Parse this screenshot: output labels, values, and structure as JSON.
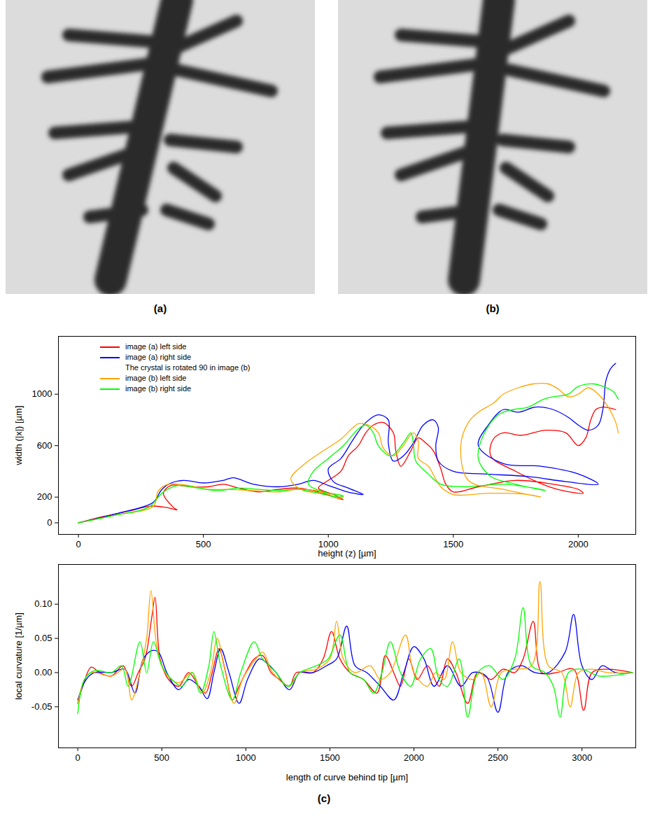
{
  "images": [
    {
      "label": "(a)"
    },
    {
      "label": "(b)"
    }
  ],
  "figure_label": "(c)",
  "chart_data": [
    {
      "type": "line",
      "x_label": "height (z) [µm]",
      "y_label": "width (|x|) [µm]",
      "xlim": [
        -80,
        2230
      ],
      "xticks": [
        0,
        500,
        1000,
        1500,
        2000
      ],
      "ylim": [
        -90,
        1450
      ],
      "yticks": [
        0,
        200,
        600,
        1000
      ],
      "grid": false,
      "legend": "top-left",
      "annotations": [
        {
          "text": "The crystal is rotated 90 in image (b)",
          "after": "image (a) right side"
        }
      ],
      "series": [
        {
          "name": "image (a) left side",
          "color": "#ff0000",
          "x": [
            0,
            100,
            200,
            290,
            350,
            395,
            380,
            340,
            370,
            450,
            520,
            580,
            640,
            720,
            800,
            880,
            960,
            1040,
            1060,
            1020,
            960,
            1000,
            1050,
            1080,
            1120,
            1150,
            1180,
            1220,
            1260,
            1270,
            1290,
            1330,
            1360,
            1390,
            1420,
            1450,
            1470,
            1500,
            1600,
            1750,
            1900,
            2000,
            2020,
            1900,
            1750,
            1650,
            1660,
            1700,
            1770,
            1870,
            1950,
            2000,
            2030,
            2050,
            2070,
            2100,
            2150
          ],
          "values": [
            0,
            50,
            90,
            130,
            120,
            100,
            120,
            230,
            290,
            280,
            280,
            300,
            270,
            240,
            260,
            270,
            240,
            190,
            180,
            220,
            270,
            330,
            400,
            520,
            600,
            700,
            760,
            780,
            700,
            560,
            440,
            560,
            660,
            620,
            560,
            420,
            300,
            240,
            280,
            330,
            300,
            260,
            230,
            270,
            400,
            520,
            650,
            700,
            680,
            720,
            700,
            600,
            660,
            800,
            880,
            900,
            880
          ]
        },
        {
          "name": "image (a) right side",
          "color": "#0000ff",
          "x": [
            0,
            150,
            300,
            330,
            360,
            420,
            500,
            580,
            620,
            700,
            800,
            880,
            940,
            1000,
            1060,
            1100,
            1140,
            1080,
            1020,
            1000,
            1050,
            1100,
            1150,
            1200,
            1240,
            1240,
            1260,
            1300,
            1340,
            1380,
            1420,
            1440,
            1430,
            1440,
            1500,
            1620,
            1800,
            1950,
            2080,
            2000,
            1850,
            1700,
            1600,
            1640,
            1700,
            1760,
            1830,
            1900,
            1960,
            2000,
            2040,
            2080,
            2100,
            2110,
            2130,
            2150
          ],
          "values": [
            0,
            70,
            160,
            250,
            300,
            330,
            310,
            330,
            350,
            300,
            280,
            300,
            330,
            290,
            250,
            230,
            220,
            270,
            320,
            420,
            500,
            650,
            780,
            840,
            800,
            620,
            480,
            520,
            620,
            760,
            800,
            740,
            600,
            480,
            400,
            380,
            360,
            320,
            300,
            380,
            440,
            460,
            600,
            760,
            880,
            860,
            900,
            880,
            820,
            760,
            720,
            760,
            900,
            1100,
            1200,
            1240
          ]
        },
        {
          "name": "image (b) left side",
          "color": "#ffa500",
          "x": [
            0,
            150,
            300,
            320,
            360,
            440,
            520,
            600,
            700,
            800,
            880,
            980,
            1040,
            1060,
            1000,
            900,
            850,
            900,
            980,
            1050,
            1120,
            1160,
            1200,
            1220,
            1260,
            1300,
            1340,
            1360,
            1360,
            1400,
            1450,
            1500,
            1650,
            1800,
            1850,
            1700,
            1560,
            1530,
            1560,
            1600,
            1660,
            1700,
            1760,
            1820,
            1880,
            1920,
            1960,
            2000,
            2040,
            2080,
            2120,
            2150,
            2160
          ],
          "values": [
            0,
            60,
            130,
            250,
            300,
            290,
            260,
            260,
            250,
            240,
            260,
            240,
            190,
            200,
            230,
            250,
            340,
            450,
            560,
            650,
            770,
            760,
            700,
            580,
            520,
            600,
            700,
            630,
            500,
            440,
            280,
            220,
            230,
            220,
            200,
            260,
            330,
            600,
            780,
            860,
            930,
            1000,
            1050,
            1080,
            1080,
            1040,
            980,
            1000,
            1050,
            1000,
            900,
            780,
            700
          ]
        },
        {
          "name": "image (b) right side",
          "color": "#00ff00",
          "x": [
            0,
            150,
            280,
            340,
            400,
            480,
            560,
            640,
            720,
            800,
            880,
            960,
            1040,
            1060,
            980,
            920,
            940,
            1000,
            1060,
            1120,
            1150,
            1180,
            1200,
            1250,
            1300,
            1330,
            1340,
            1350,
            1400,
            1450,
            1550,
            1700,
            1850,
            1870,
            1750,
            1650,
            1600,
            1620,
            1680,
            1740,
            1800,
            1860,
            1900,
            1960,
            2000,
            2060,
            2100,
            2140,
            2160
          ],
          "values": [
            0,
            60,
            120,
            240,
            290,
            270,
            250,
            270,
            260,
            250,
            260,
            230,
            200,
            210,
            240,
            300,
            400,
            500,
            600,
            730,
            760,
            700,
            600,
            520,
            620,
            700,
            620,
            480,
            380,
            300,
            280,
            300,
            260,
            250,
            300,
            360,
            500,
            680,
            840,
            880,
            900,
            960,
            980,
            1000,
            1060,
            1080,
            1060,
            1020,
            960
          ]
        }
      ]
    },
    {
      "type": "line",
      "x_label": "length of curve behind tip [µm]",
      "y_label": "local curvature [1/µm]",
      "xlim": [
        -115,
        3320
      ],
      "xticks": [
        0,
        500,
        1000,
        1500,
        2000,
        2500,
        3000
      ],
      "ylim": [
        -0.11,
        0.158
      ],
      "yticks": [
        -0.05,
        {
          "value": 0,
          "label": "0.00"
        },
        0.05,
        {
          "value": 0.1,
          "label": "0.10"
        }
      ],
      "grid": false,
      "series": [
        {
          "color": "#ff0000",
          "x": [
            0,
            30,
            80,
            130,
            200,
            270,
            320,
            360,
            400,
            440,
            460,
            490,
            540,
            600,
            660,
            720,
            760,
            800,
            840,
            880,
            920,
            960,
            1000,
            1050,
            1100,
            1150,
            1200,
            1260,
            1300,
            1400,
            1460,
            1510,
            1560,
            1620,
            1700,
            1780,
            1830,
            1880,
            1920,
            1970,
            2020,
            2080,
            2150,
            2200,
            2250,
            2320,
            2380,
            2460,
            2530,
            2600,
            2650,
            2710,
            2760,
            2850,
            2950,
            3010,
            3060,
            3150,
            3300
          ],
          "values": [
            -0.045,
            -0.02,
            0.008,
            0,
            -0.005,
            0.01,
            -0.02,
            0,
            0.02,
            0.08,
            0.11,
            0.02,
            -0.01,
            -0.02,
            0,
            -0.02,
            -0.03,
            0,
            0.035,
            0,
            -0.04,
            -0.02,
            0,
            0.02,
            0.025,
            0,
            -0.01,
            -0.02,
            0,
            0,
            0.02,
            0.06,
            0.02,
            0,
            -0.01,
            -0.03,
            0.025,
            0,
            -0.02,
            0.02,
            -0.01,
            0.01,
            -0.02,
            0.02,
            0,
            -0.045,
            0,
            -0.01,
            0.005,
            0,
            0.02,
            0.075,
            0,
            0,
            0.005,
            -0.055,
            0,
            0.005,
            0
          ]
        },
        {
          "color": "#0000ff",
          "x": [
            0,
            50,
            100,
            200,
            280,
            340,
            390,
            440,
            480,
            530,
            600,
            660,
            720,
            770,
            810,
            850,
            900,
            960,
            1010,
            1080,
            1120,
            1180,
            1260,
            1320,
            1400,
            1480,
            1540,
            1600,
            1650,
            1720,
            1800,
            1880,
            1940,
            2000,
            2060,
            2120,
            2200,
            2280,
            2350,
            2430,
            2500,
            2560,
            2640,
            2720,
            2800,
            2900,
            2950,
            3000,
            3060,
            3120,
            3200,
            3300
          ],
          "values": [
            -0.04,
            -0.01,
            0,
            0,
            0.005,
            -0.03,
            0.02,
            0.032,
            0.03,
            0,
            -0.025,
            -0.01,
            -0.02,
            -0.038,
            0,
            0.035,
            0,
            -0.045,
            -0.01,
            0.02,
            0.015,
            0,
            -0.025,
            0,
            0,
            0.01,
            0.02,
            0.068,
            0.01,
            0,
            -0.02,
            -0.04,
            0,
            0.038,
            0.02,
            -0.02,
            0.01,
            -0.02,
            0,
            -0.005,
            -0.058,
            0,
            0.01,
            0,
            0,
            0.03,
            0.085,
            0.01,
            -0.01,
            0.01,
            0,
            0
          ]
        },
        {
          "color": "#ffa500",
          "x": [
            0,
            40,
            80,
            200,
            280,
            320,
            370,
            410,
            435,
            470,
            520,
            600,
            680,
            740,
            790,
            830,
            870,
            930,
            980,
            1060,
            1100,
            1160,
            1260,
            1320,
            1420,
            1500,
            1540,
            1580,
            1650,
            1740,
            1800,
            1860,
            1950,
            2000,
            2080,
            2130,
            2180,
            2230,
            2280,
            2350,
            2400,
            2460,
            2520,
            2600,
            2700,
            2750,
            2800,
            2880,
            2930,
            2980,
            3060,
            3150,
            3300
          ],
          "values": [
            -0.045,
            -0.01,
            0,
            -0.005,
            0.005,
            -0.04,
            0,
            0.05,
            0.12,
            0.04,
            0,
            -0.015,
            0,
            -0.03,
            0,
            0.05,
            0.01,
            -0.045,
            -0.01,
            0.02,
            0.03,
            0,
            -0.02,
            0,
            0.005,
            0.02,
            0.075,
            0.02,
            0,
            0.01,
            -0.01,
            0,
            0.055,
            0,
            -0.02,
            0,
            -0.01,
            0.045,
            0,
            -0.01,
            0,
            -0.05,
            0,
            0.005,
            0.01,
            0.133,
            0.01,
            0,
            -0.05,
            0,
            0.005,
            0,
            0
          ]
        },
        {
          "color": "#00ff00",
          "x": [
            0,
            40,
            100,
            200,
            260,
            300,
            370,
            410,
            450,
            500,
            560,
            620,
            680,
            730,
            780,
            810,
            850,
            920,
            970,
            1050,
            1100,
            1180,
            1250,
            1320,
            1420,
            1490,
            1560,
            1620,
            1700,
            1760,
            1810,
            1860,
            1920,
            1980,
            2040,
            2100,
            2150,
            2200,
            2270,
            2320,
            2380,
            2450,
            2530,
            2600,
            2650,
            2700,
            2780,
            2830,
            2870,
            2920,
            3000,
            3100,
            3300
          ],
          "values": [
            -0.06,
            -0.01,
            0.003,
            0,
            0.01,
            -0.02,
            0.045,
            0,
            0.045,
            0.01,
            -0.01,
            -0.02,
            0,
            -0.03,
            0.01,
            0.06,
            0.01,
            -0.04,
            0,
            0.045,
            0.02,
            0,
            -0.02,
            0,
            0.01,
            0.02,
            0.055,
            0,
            -0.01,
            -0.03,
            0,
            0.045,
            0,
            -0.02,
            0.02,
            0.035,
            -0.01,
            -0.02,
            0.02,
            -0.065,
            0,
            0.01,
            -0.01,
            0.02,
            0.095,
            0.01,
            0,
            -0.02,
            -0.065,
            0,
            0.005,
            -0.005,
            0
          ]
        }
      ]
    }
  ]
}
